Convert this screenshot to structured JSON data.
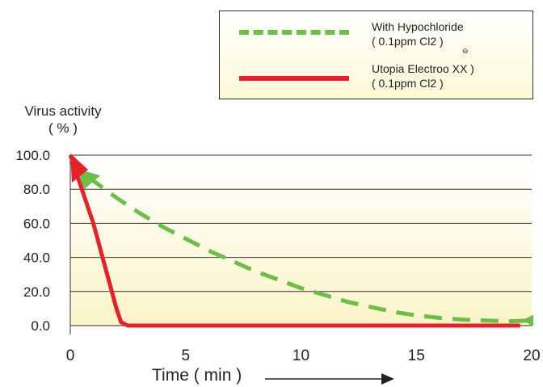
{
  "chart_data": {
    "type": "line",
    "ylabel": "Virus activity",
    "ylabel_unit": "( % )",
    "xlabel": "Time ( min )",
    "x_ticks": [
      "0",
      "5",
      "10",
      "15",
      "20"
    ],
    "y_ticks": [
      "100.0",
      "80.0",
      "60.0",
      "40.0",
      "20.0",
      "0.0"
    ],
    "xlim": [
      0,
      20
    ],
    "ylim": [
      0,
      100
    ],
    "grid": "horizontal",
    "legend_position": "top-right",
    "series": [
      {
        "name": "With Hypochloride",
        "name_sub": "( 0.1ppm Cl2 )",
        "style": "dashed",
        "color": "#6bbf45",
        "points": [
          [
            0,
            100
          ],
          [
            1,
            85
          ],
          [
            2,
            75
          ],
          [
            3,
            66
          ],
          [
            4,
            58
          ],
          [
            5,
            51
          ],
          [
            6,
            44
          ],
          [
            7,
            38
          ],
          [
            8,
            32
          ],
          [
            9,
            27
          ],
          [
            10,
            22
          ],
          [
            11,
            18
          ],
          [
            12,
            14
          ],
          [
            13,
            11
          ],
          [
            14,
            8
          ],
          [
            15,
            6
          ],
          [
            16,
            4.5
          ],
          [
            17,
            3.5
          ],
          [
            18,
            3
          ],
          [
            19,
            2.5
          ],
          [
            20,
            3
          ]
        ]
      },
      {
        "name": "Utopia Electroo XX",
        "name_sub": "( 0.1ppm Cl2 )",
        "style": "solid",
        "color": "#e8202a",
        "points": [
          [
            0,
            100
          ],
          [
            0.5,
            80
          ],
          [
            1,
            60
          ],
          [
            1.5,
            35
          ],
          [
            2,
            10
          ],
          [
            2.2,
            2
          ],
          [
            2.5,
            0
          ],
          [
            5,
            0
          ],
          [
            10,
            0
          ],
          [
            15,
            0
          ],
          [
            19.5,
            0
          ]
        ]
      }
    ]
  },
  "legend": {
    "item1_line1": "With Hypochloride",
    "item1_line2": "( 0.1ppm Cl2 )",
    "item2_line1": "Utopia Electroo XX )",
    "item2_line2": "( 0.1ppm Cl2 )",
    "reg_symbol": "⊖"
  }
}
